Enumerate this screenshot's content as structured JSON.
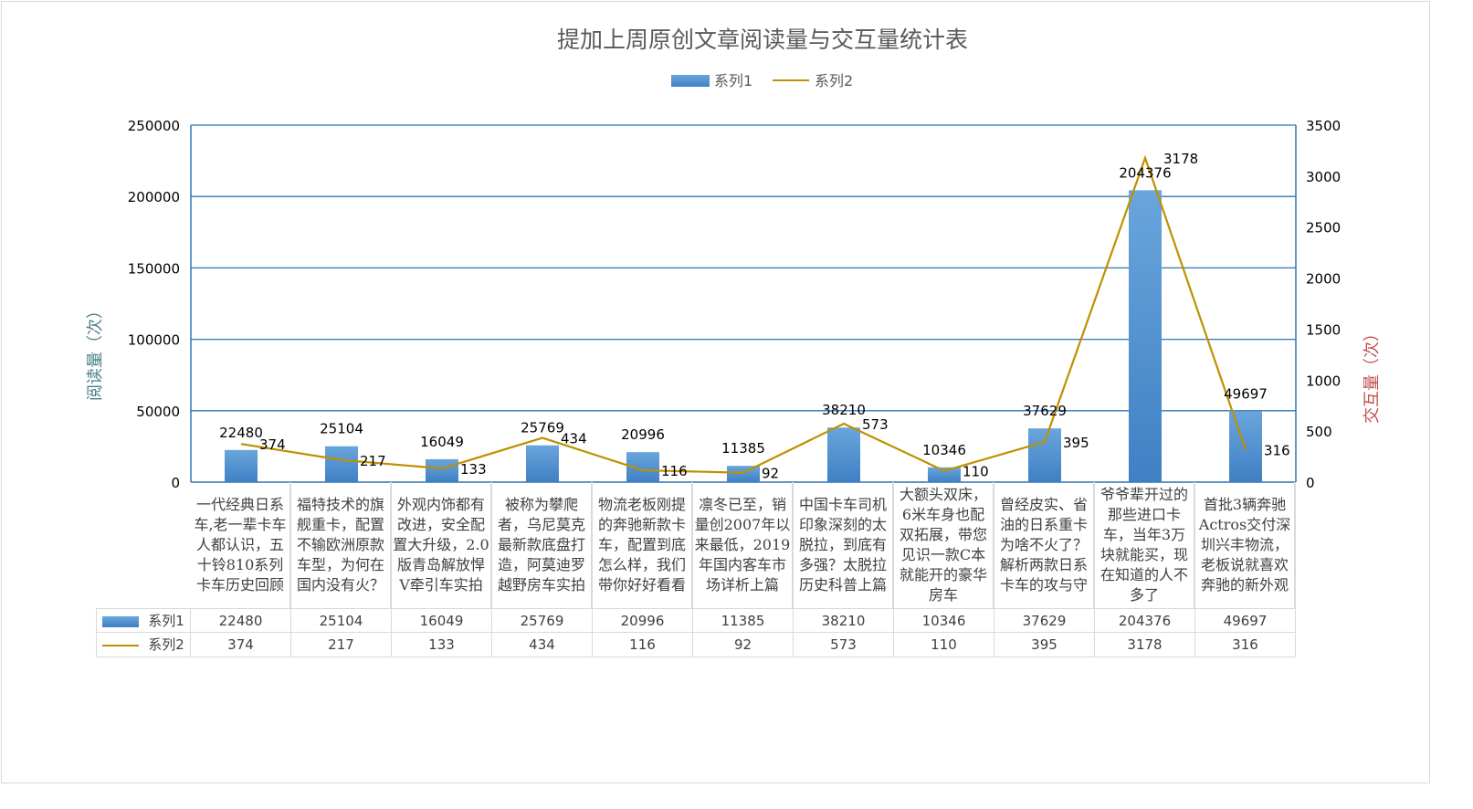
{
  "chart_data": {
    "type": "bar+line",
    "title": "提加上周原创文章阅读量与交互量统计表",
    "ylabel": "阅读量（次）",
    "y2label": "交互量（次）",
    "ylim": [
      0,
      250000
    ],
    "y2lim": [
      0,
      3500
    ],
    "yticks": [
      "0",
      "50000",
      "100000",
      "150000",
      "200000",
      "250000"
    ],
    "y2ticks": [
      "0",
      "500",
      "1000",
      "1500",
      "2000",
      "2500",
      "3000",
      "3500"
    ],
    "legend_position": "top",
    "grid": true,
    "categories": [
      "一代经典日系车,老一辈卡车人都认识，五十铃810系列卡车历史回顾",
      "福特技术的旗舰重卡，配置不输欧洲原款车型，为何在国内没有火？",
      "外观内饰都有改进，安全配置大升级，2.0版青岛解放悍V牵引车实拍",
      "被称为攀爬者，乌尼莫克最新款底盘打造，阿莫迪罗越野房车实拍",
      "物流老板刚提的奔驰新款卡车，配置到底怎么样，我们带你好好看看",
      "凛冬已至，销量创2007年以来最低，2019年国内客车市场详析上篇",
      "中国卡车司机印象深刻的太脱拉，到底有多强？太脱拉历史科普上篇",
      "大额头双床，6米车身也配双拓展，带您见识一款C本就能开的豪华房车",
      "曾经皮实、省油的日系重卡为啥不火了？解析两款日系卡车的攻与守",
      "爷爷辈开过的那些进口卡车，当年3万块就能买，现在知道的人不多了",
      "首批3辆奔驰Actros交付深圳兴丰物流，老板说就喜欢奔驰的新外观"
    ],
    "series": [
      {
        "name": "系列1",
        "type": "bar",
        "axis": "left",
        "color": "#5b9bd5",
        "values": [
          22480,
          25104,
          16049,
          25769,
          20996,
          11385,
          38210,
          10346,
          37629,
          204376,
          49697
        ]
      },
      {
        "name": "系列2",
        "type": "line",
        "axis": "right",
        "color": "#bf9000",
        "values": [
          374,
          217,
          133,
          434,
          116,
          92,
          573,
          110,
          395,
          3178,
          316
        ]
      }
    ]
  }
}
